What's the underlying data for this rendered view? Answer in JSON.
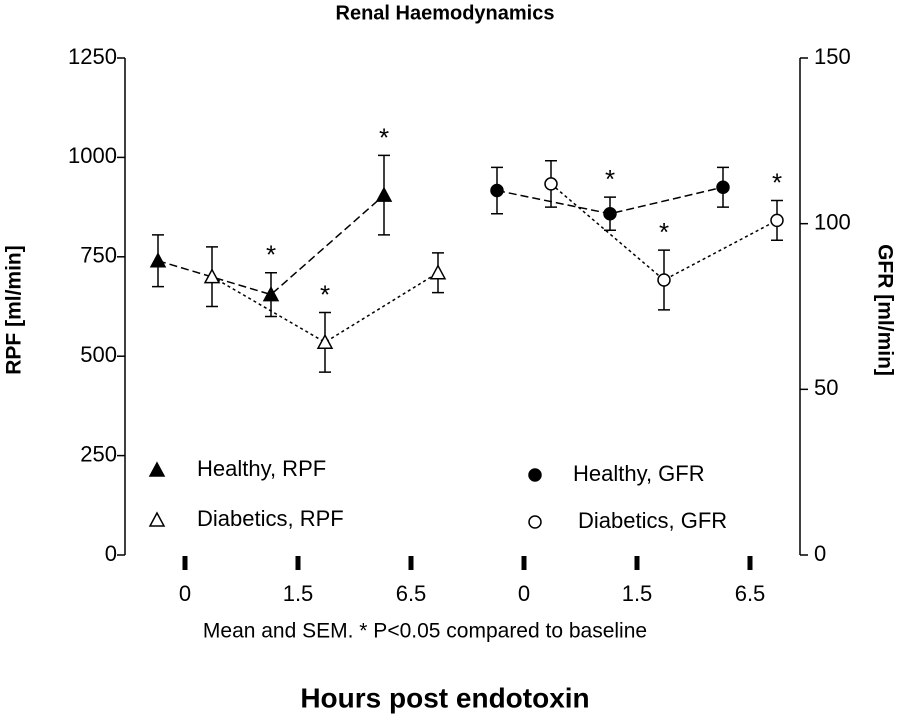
{
  "chart_data": {
    "type": "line",
    "title": "Renal Haemodynamics",
    "xlabel": "Hours post endotoxin",
    "ylabel": "RPF [ml/min]",
    "y2label": "GFR [ml/min]",
    "note": "Mean and SEM. * P<0.05 compared to baseline",
    "categories": [
      "0",
      "1.5",
      "6.5",
      "0",
      "1.5",
      "6.5"
    ],
    "ylim": [
      0,
      1250
    ],
    "yticks": [
      0,
      250,
      500,
      750,
      1000,
      1250
    ],
    "y2lim": [
      0,
      150
    ],
    "y2ticks": [
      0,
      50,
      100,
      150
    ],
    "series": [
      {
        "name": "Healthy, RPF",
        "color": "#000000",
        "marker": "triangle",
        "filled": true,
        "dash": "dashed",
        "values": [
          740,
          655,
          905,
          null,
          null,
          null
        ],
        "errors": [
          65,
          55,
          100,
          null,
          null,
          null
        ],
        "labels": [
          null,
          "*",
          "*",
          null,
          null,
          null
        ]
      },
      {
        "name": "Diabetics, RPF",
        "color": "#000000",
        "marker": "triangle",
        "filled": false,
        "dash": "dotted",
        "values": [
          700,
          535,
          710,
          null,
          null,
          null
        ],
        "errors": [
          75,
          75,
          50,
          null,
          null,
          null
        ],
        "labels": [
          null,
          "*",
          null,
          null,
          null,
          null
        ]
      },
      {
        "name": "Healthy, GFR",
        "color": "#000000",
        "marker": "circle",
        "filled": true,
        "dash": "dashed",
        "axis": "y2",
        "values": [
          null,
          null,
          null,
          110,
          103,
          111
        ],
        "errors": [
          null,
          null,
          null,
          7,
          5,
          6
        ],
        "labels": [
          null,
          null,
          null,
          null,
          "*",
          null
        ]
      },
      {
        "name": "Diabetics, GFR",
        "color": "#000000",
        "marker": "circle",
        "filled": false,
        "dash": "dotted",
        "axis": "y2",
        "values": [
          null,
          null,
          null,
          112,
          83,
          101
        ],
        "errors": [
          null,
          null,
          null,
          7,
          9,
          6
        ],
        "labels": [
          null,
          null,
          null,
          null,
          "*",
          "*"
        ]
      }
    ]
  }
}
